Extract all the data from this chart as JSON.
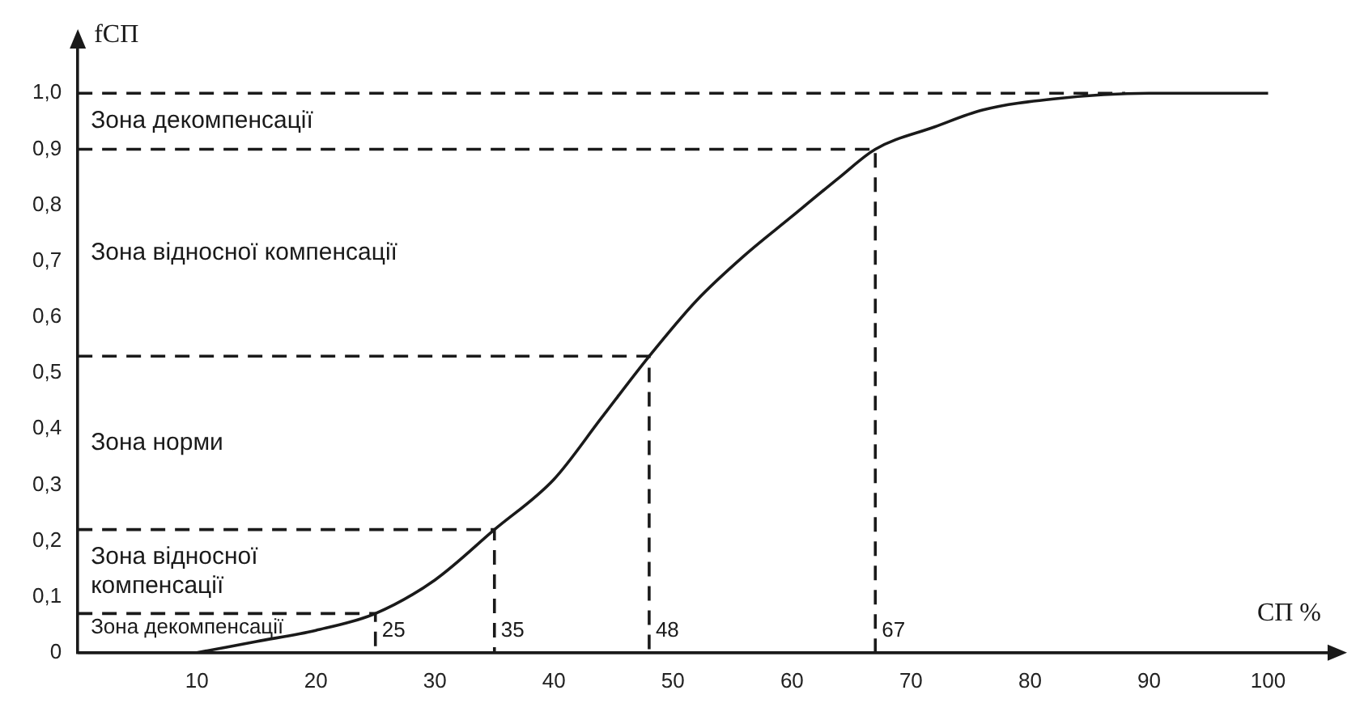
{
  "chart_data": {
    "type": "line",
    "xlabel": "СП %",
    "ylabel": "fСП",
    "xlim": [
      0,
      105
    ],
    "ylim": [
      0,
      1.08
    ],
    "xticks": [
      10,
      20,
      30,
      40,
      50,
      60,
      70,
      80,
      90,
      100
    ],
    "yticks": [
      0,
      {
        "value": 0.1,
        "label": "0,1"
      },
      {
        "value": 0.2,
        "label": "0,2"
      },
      {
        "value": 0.3,
        "label": "0,3"
      },
      {
        "value": 0.4,
        "label": "0,4"
      },
      {
        "value": 0.5,
        "label": "0,5"
      },
      {
        "value": 0.6,
        "label": "0,6"
      },
      {
        "value": 0.7,
        "label": "0,7"
      },
      {
        "value": 0.8,
        "label": "0,8"
      },
      {
        "value": 0.9,
        "label": "0,9"
      },
      {
        "value": 1.0,
        "label": "1,0"
      }
    ],
    "series": [
      {
        "type": "line",
        "color": "#1a1a1a",
        "line_style": "solid",
        "x": [
          10,
          15,
          20,
          25,
          30,
          35,
          40,
          44,
          48,
          52,
          56,
          60,
          64,
          67,
          72,
          76,
          82,
          90,
          100
        ],
        "values": [
          0,
          0.02,
          0.04,
          0.07,
          0.13,
          0.22,
          0.31,
          0.42,
          0.53,
          0.63,
          0.71,
          0.78,
          0.85,
          0.9,
          0.94,
          0.97,
          0.99,
          1.0,
          1.0
        ]
      },
      {
        "type": "line",
        "color": "#1a1a1a",
        "line_style": "dashed",
        "x": [
          0,
          25,
          25
        ],
        "values": [
          0.07,
          0.07,
          0
        ]
      },
      {
        "type": "line",
        "color": "#1a1a1a",
        "line_style": "dashed",
        "x": [
          0,
          35,
          35
        ],
        "values": [
          0.22,
          0.22,
          0
        ]
      },
      {
        "type": "line",
        "color": "#1a1a1a",
        "line_style": "dashed",
        "x": [
          0,
          48,
          48
        ],
        "values": [
          0.53,
          0.53,
          0
        ]
      },
      {
        "type": "line",
        "color": "#1a1a1a",
        "line_style": "dashed",
        "x": [
          0,
          67,
          67
        ],
        "values": [
          0.9,
          0.9,
          0
        ]
      },
      {
        "type": "line",
        "color": "#1a1a1a",
        "line_style": "dashed",
        "x": [
          0,
          88
        ],
        "values": [
          1.0,
          1.0
        ]
      }
    ],
    "annotations": [
      "Зона декомпенсації",
      "Зона відносної компенсації",
      "Зона норми",
      "Зона відносної компенсації",
      "Зона декомпенсації",
      {
        "text": "25",
        "x": 25,
        "y": 0.02
      },
      {
        "text": "35",
        "x": 35,
        "y": 0.02
      },
      {
        "text": "48",
        "x": 48,
        "y": 0.02
      },
      {
        "text": "67",
        "x": 67,
        "y": 0.02
      }
    ]
  }
}
